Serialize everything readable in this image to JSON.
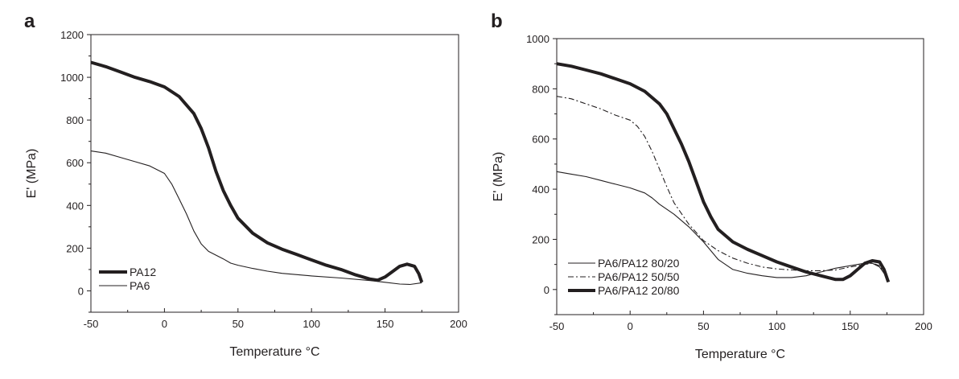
{
  "chart_data": [
    {
      "type": "line",
      "panel_label": "a",
      "xlabel": "Temperature °C",
      "ylabel": "E' (MPa)",
      "xlim": [
        -50,
        200
      ],
      "ylim": [
        -100,
        1200
      ],
      "xticks": [
        -50,
        0,
        50,
        100,
        150,
        200
      ],
      "yticks": [
        0,
        200,
        400,
        600,
        800,
        1000,
        1200
      ],
      "grid": false,
      "legend_position": "bottom-left",
      "series": [
        {
          "name": "PA12",
          "style": "thick-solid",
          "x": [
            -50,
            -40,
            -30,
            -20,
            -10,
            0,
            10,
            20,
            25,
            30,
            35,
            40,
            45,
            50,
            60,
            70,
            80,
            90,
            100,
            110,
            120,
            130,
            140,
            145,
            150,
            155,
            160,
            165,
            170,
            173,
            175
          ],
          "y": [
            1070,
            1050,
            1025,
            1000,
            980,
            955,
            910,
            830,
            760,
            670,
            560,
            470,
            400,
            340,
            270,
            225,
            195,
            170,
            145,
            120,
            100,
            75,
            55,
            50,
            65,
            90,
            115,
            125,
            115,
            80,
            40
          ]
        },
        {
          "name": "PA6",
          "style": "thin-solid",
          "x": [
            -50,
            -40,
            -30,
            -20,
            -10,
            0,
            5,
            10,
            15,
            20,
            25,
            30,
            40,
            45,
            50,
            60,
            70,
            80,
            100,
            120,
            140,
            150,
            160,
            167,
            175
          ],
          "y": [
            655,
            645,
            625,
            605,
            585,
            550,
            500,
            430,
            360,
            280,
            220,
            185,
            150,
            130,
            120,
            105,
            92,
            82,
            70,
            60,
            48,
            40,
            32,
            30,
            38
          ]
        }
      ]
    },
    {
      "type": "line",
      "panel_label": "b",
      "xlabel": "Temperature °C",
      "ylabel": "E' (MPa)",
      "xlim": [
        -50,
        200
      ],
      "ylim": [
        -100,
        1000
      ],
      "xticks": [
        -50,
        0,
        50,
        100,
        150,
        200
      ],
      "yticks": [
        0,
        200,
        400,
        600,
        800,
        1000
      ],
      "grid": false,
      "legend_position": "bottom-left",
      "series": [
        {
          "name": "PA6/PA12 80/20",
          "style": "thin-solid",
          "x": [
            -50,
            -40,
            -30,
            -20,
            -10,
            0,
            10,
            15,
            20,
            30,
            40,
            50,
            60,
            70,
            80,
            90,
            100,
            110,
            120,
            130,
            140,
            150,
            160,
            165,
            170,
            176
          ],
          "y": [
            470,
            460,
            450,
            435,
            420,
            405,
            385,
            365,
            340,
            300,
            250,
            190,
            120,
            80,
            65,
            55,
            48,
            48,
            55,
            70,
            85,
            95,
            105,
            105,
            90,
            40
          ]
        },
        {
          "name": "PA6/PA12 50/50",
          "style": "dash-dot",
          "x": [
            -50,
            -40,
            -30,
            -20,
            -10,
            0,
            5,
            10,
            15,
            20,
            25,
            30,
            40,
            50,
            60,
            70,
            80,
            90,
            100,
            110,
            120,
            130,
            140,
            150,
            160,
            165,
            170,
            176
          ],
          "y": [
            770,
            760,
            740,
            720,
            695,
            675,
            650,
            610,
            550,
            480,
            410,
            345,
            260,
            195,
            155,
            125,
            105,
            90,
            82,
            78,
            75,
            75,
            78,
            90,
            100,
            105,
            95,
            40
          ]
        },
        {
          "name": "PA6/PA12 20/80",
          "style": "thick-solid",
          "x": [
            -50,
            -40,
            -30,
            -20,
            -10,
            0,
            10,
            20,
            25,
            30,
            35,
            40,
            45,
            50,
            55,
            60,
            70,
            80,
            90,
            100,
            110,
            120,
            130,
            140,
            145,
            150,
            155,
            160,
            165,
            170,
            173,
            176
          ],
          "y": [
            900,
            890,
            875,
            860,
            840,
            820,
            790,
            740,
            700,
            640,
            580,
            510,
            430,
            350,
            290,
            240,
            190,
            160,
            135,
            110,
            90,
            70,
            55,
            40,
            40,
            55,
            80,
            105,
            115,
            110,
            80,
            30
          ]
        }
      ]
    }
  ]
}
